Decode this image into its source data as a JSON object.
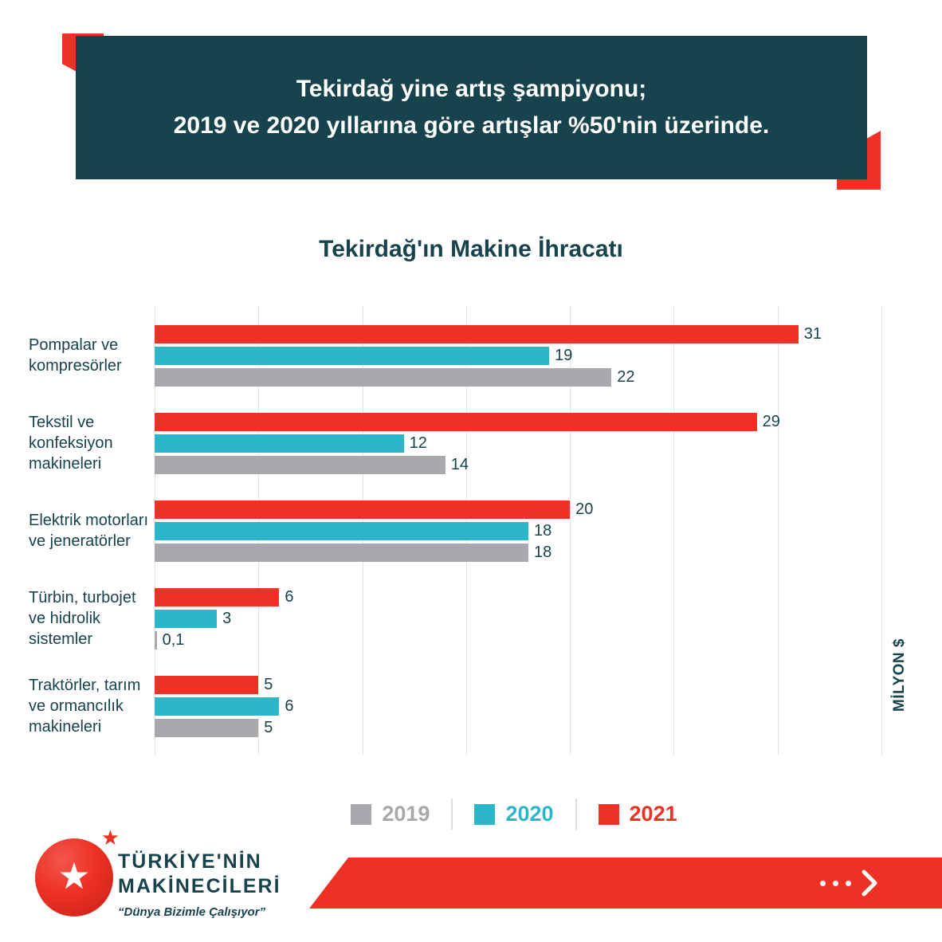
{
  "banner": {
    "line1": "Tekirdağ yine artış şampiyonu;",
    "line2": "2019 ve 2020 yıllarına göre artışlar %50'nin üzerinde."
  },
  "chart_data": {
    "type": "bar",
    "orientation": "horizontal",
    "title": "Tekirdağ'ın Makine İhracatı",
    "unit_label": "MİLYON $",
    "categories": [
      "Pompalar ve kompresörler",
      "Tekstil ve konfeksiyon makineleri",
      "Elektrik motorları ve jeneratörler",
      "Türbin, turbojet ve hidrolik sistemler",
      "Traktörler, tarım ve ormancılık makineleri"
    ],
    "series": [
      {
        "name": "2021",
        "color": "#EE3124",
        "values": [
          31,
          29,
          20,
          6,
          5
        ],
        "value_labels": [
          "31",
          "29",
          "20",
          "6",
          "5"
        ]
      },
      {
        "name": "2020",
        "color": "#2BB6C9",
        "values": [
          19,
          12,
          18,
          3,
          6
        ],
        "value_labels": [
          "19",
          "12",
          "18",
          "3",
          "6"
        ]
      },
      {
        "name": "2019",
        "color": "#A7A9AC",
        "values": [
          22,
          14,
          18,
          0.1,
          5
        ],
        "value_labels": [
          "22",
          "14",
          "18",
          "0,1",
          "5"
        ]
      }
    ],
    "xlim": [
      0,
      35
    ],
    "grid_interval": 5,
    "grid": "vertical",
    "legend_position": "bottom",
    "legend": [
      {
        "label": "2019",
        "color": "#A7A9AC"
      },
      {
        "label": "2020",
        "color": "#2BB6C9"
      },
      {
        "label": "2021",
        "color": "#EE3124"
      }
    ]
  },
  "footer": {
    "brand_line1": "TÜRKİYE'NİN",
    "brand_line2": "MAKİNECİLERİ",
    "tagline": "“Dünya Bizimle Çalışıyor”"
  },
  "colors": {
    "teal": "#17434D",
    "red": "#EE3124",
    "cyan": "#2BB6C9",
    "gray": "#A7A9AC"
  }
}
